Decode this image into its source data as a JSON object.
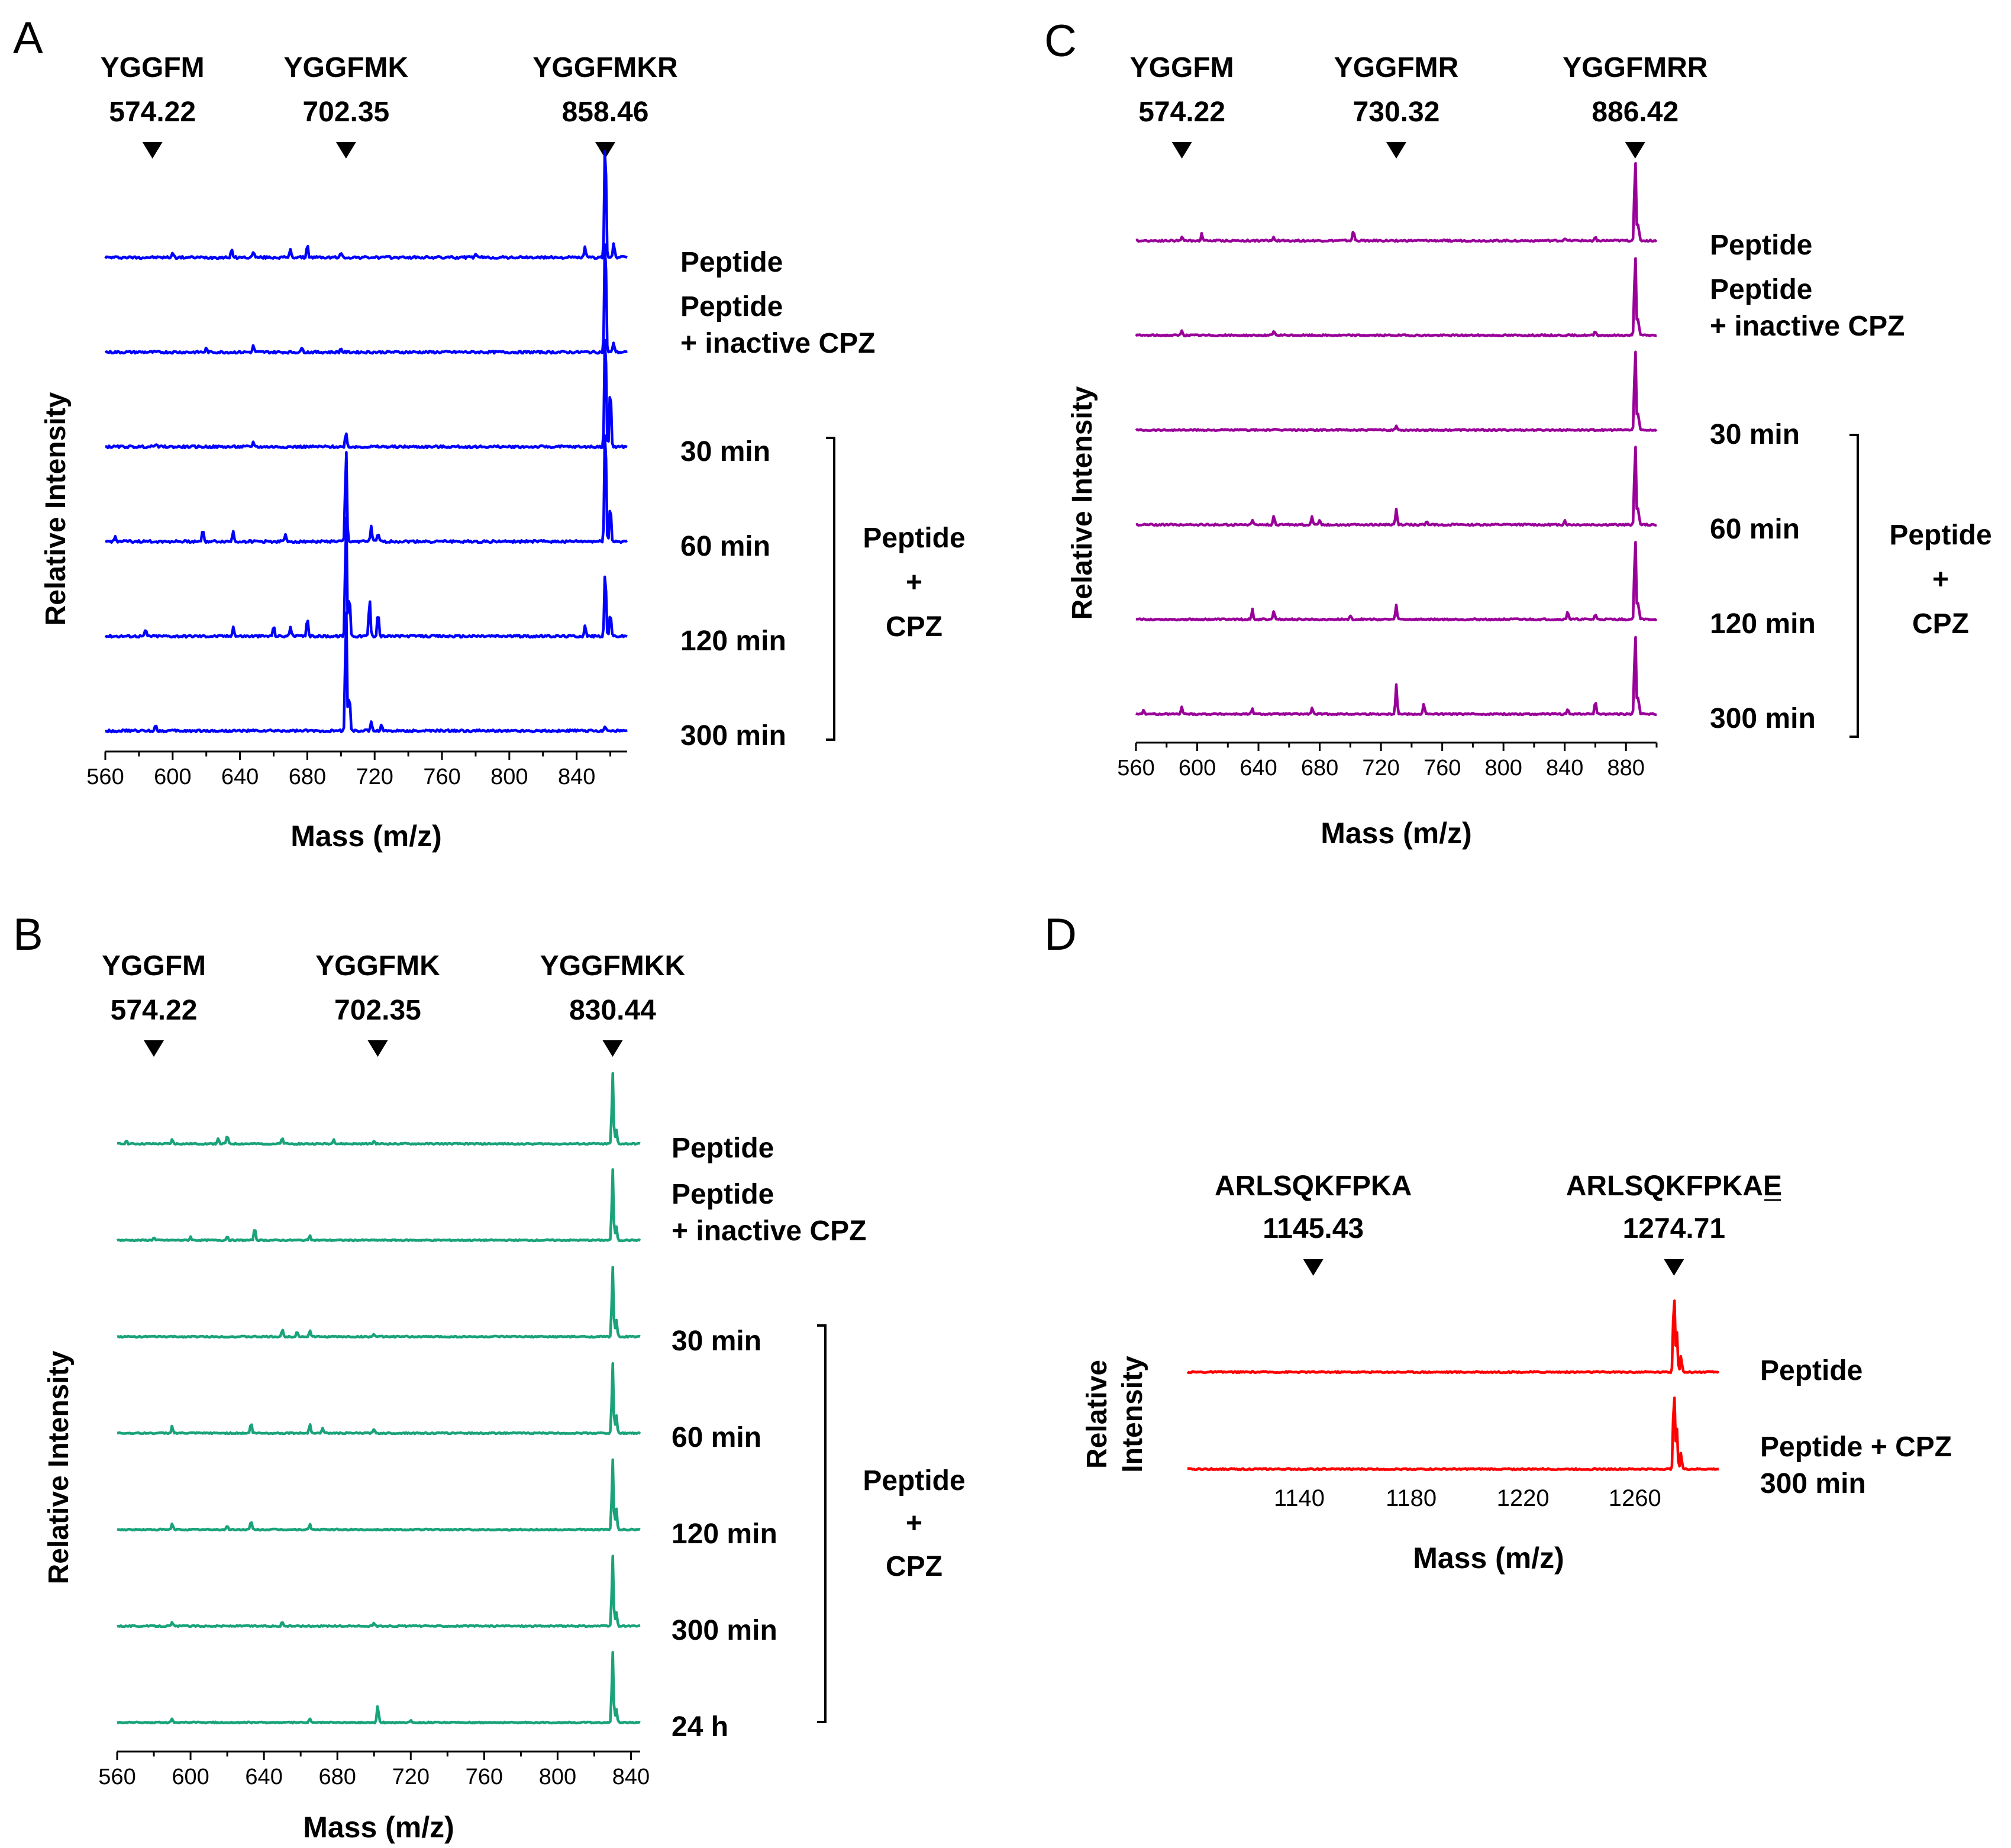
{
  "chart_data": [
    {
      "panel": "A",
      "type": "line",
      "color": "#0000ff",
      "xlabel": "Mass (m/z)",
      "ylabel": "Relative Intensity",
      "xlim": [
        560,
        870
      ],
      "xticks": [
        560,
        600,
        640,
        680,
        720,
        760,
        800,
        840
      ],
      "markers": [
        {
          "name": "YGGFM",
          "mass": "574.22",
          "x": 588
        },
        {
          "name": "YGGFMK",
          "mass": "702.35",
          "x": 703
        },
        {
          "name": "YGGFMKR",
          "mass": "858.46",
          "x": 857
        }
      ],
      "series": [
        {
          "name": "Peptide",
          "label_lines": [
            "Peptide"
          ],
          "peaks": [
            [
              857,
              1.0
            ],
            [
              862,
              0.12
            ],
            [
              845,
              0.08
            ],
            [
              680,
              0.1
            ],
            [
              670,
              0.07
            ],
            [
              635,
              0.06
            ],
            [
              648,
              0.05
            ],
            [
              700,
              0.04
            ],
            [
              780,
              0.03
            ],
            [
              600,
              0.04
            ]
          ]
        },
        {
          "name": "Peptide + inactive CPZ",
          "label_lines": [
            "Peptide",
            "+ inactive CPZ"
          ],
          "peaks": [
            [
              857,
              1.0
            ],
            [
              862,
              0.08
            ],
            [
              648,
              0.05
            ],
            [
              677,
              0.04
            ],
            [
              620,
              0.03
            ],
            [
              700,
              0.03
            ]
          ]
        },
        {
          "name": "30 min",
          "label_lines": [
            "30 min"
          ],
          "peaks": [
            [
              857,
              1.0
            ],
            [
              860,
              0.5
            ],
            [
              703,
              0.12
            ],
            [
              648,
              0.04
            ],
            [
              590,
              0.03
            ]
          ]
        },
        {
          "name": "60 min",
          "label_lines": [
            "60 min"
          ],
          "peaks": [
            [
              857,
              1.0
            ],
            [
              860,
              0.3
            ],
            [
              703,
              0.75
            ],
            [
              718,
              0.12
            ],
            [
              722,
              0.06
            ],
            [
              618,
              0.1
            ],
            [
              636,
              0.08
            ],
            [
              667,
              0.05
            ],
            [
              566,
              0.04
            ]
          ]
        },
        {
          "name": "120 min",
          "label_lines": [
            "120 min"
          ],
          "peaks": [
            [
              703,
              1.0
            ],
            [
              705,
              0.35
            ],
            [
              717,
              0.3
            ],
            [
              722,
              0.2
            ],
            [
              857,
              0.55
            ],
            [
              860,
              0.2
            ],
            [
              680,
              0.15
            ],
            [
              670,
              0.08
            ],
            [
              660,
              0.08
            ],
            [
              636,
              0.08
            ],
            [
              845,
              0.08
            ],
            [
              584,
              0.05
            ]
          ]
        },
        {
          "name": "300 min",
          "label_lines": [
            "300 min"
          ],
          "peaks": [
            [
              703,
              1.0
            ],
            [
              705,
              0.3
            ],
            [
              718,
              0.08
            ],
            [
              724,
              0.05
            ],
            [
              590,
              0.05
            ],
            [
              857,
              0.04
            ]
          ]
        }
      ],
      "bracket_label": [
        "Peptide",
        "+",
        "CPZ"
      ]
    },
    {
      "panel": "B",
      "type": "line",
      "color": "#1aa37a",
      "xlabel": "Mass (m/z)",
      "ylabel": "Relative Intensity",
      "xlim": [
        560,
        845
      ],
      "xticks": [
        560,
        600,
        640,
        680,
        720,
        760,
        800,
        840
      ],
      "markers": [
        {
          "name": "YGGFM",
          "mass": "574.22",
          "x": 580
        },
        {
          "name": "YGGFMK",
          "mass": "702.35",
          "x": 702
        },
        {
          "name": "YGGFMKK",
          "mass": "830.44",
          "x": 830
        }
      ],
      "series": [
        {
          "name": "Peptide",
          "label_lines": [
            "Peptide"
          ],
          "peaks": [
            [
              830,
              1.0
            ],
            [
              832,
              0.2
            ],
            [
              620,
              0.12
            ],
            [
              615,
              0.08
            ],
            [
              650,
              0.08
            ],
            [
              678,
              0.07
            ],
            [
              590,
              0.06
            ],
            [
              565,
              0.05
            ],
            [
              700,
              0.04
            ]
          ]
        },
        {
          "name": "Peptide + inactive CPZ",
          "label_lines": [
            "Peptide",
            "+ inactive CPZ"
          ],
          "peaks": [
            [
              830,
              1.0
            ],
            [
              832,
              0.2
            ],
            [
              635,
              0.18
            ],
            [
              665,
              0.08
            ],
            [
              620,
              0.06
            ],
            [
              600,
              0.05
            ],
            [
              580,
              0.04
            ]
          ]
        },
        {
          "name": "30 min",
          "label_lines": [
            "30 min"
          ],
          "peaks": [
            [
              830,
              1.0
            ],
            [
              832,
              0.25
            ],
            [
              650,
              0.1
            ],
            [
              658,
              0.08
            ],
            [
              665,
              0.09
            ],
            [
              700,
              0.04
            ]
          ]
        },
        {
          "name": "60 min",
          "label_lines": [
            "60 min"
          ],
          "peaks": [
            [
              830,
              1.0
            ],
            [
              832,
              0.25
            ],
            [
              590,
              0.1
            ],
            [
              633,
              0.15
            ],
            [
              665,
              0.14
            ],
            [
              672,
              0.08
            ],
            [
              700,
              0.05
            ]
          ]
        },
        {
          "name": "120 min",
          "label_lines": [
            "120 min"
          ],
          "peaks": [
            [
              830,
              1.0
            ],
            [
              832,
              0.3
            ],
            [
              590,
              0.08
            ],
            [
              633,
              0.12
            ],
            [
              665,
              0.08
            ],
            [
              620,
              0.05
            ]
          ]
        },
        {
          "name": "300 min",
          "label_lines": [
            "300 min"
          ],
          "peaks": [
            [
              830,
              1.0
            ],
            [
              832,
              0.2
            ],
            [
              590,
              0.05
            ],
            [
              650,
              0.06
            ],
            [
              700,
              0.04
            ]
          ]
        },
        {
          "name": "24 h",
          "label_lines": [
            "24 h"
          ],
          "peaks": [
            [
              830,
              1.0
            ],
            [
              832,
              0.2
            ],
            [
              702,
              0.25
            ],
            [
              590,
              0.05
            ],
            [
              665,
              0.05
            ],
            [
              720,
              0.04
            ]
          ]
        }
      ],
      "bracket_label": [
        "Peptide",
        "+",
        "CPZ"
      ]
    },
    {
      "panel": "C",
      "type": "line",
      "color": "#990099",
      "xlabel": "Mass (m/z)",
      "ylabel": "Relative Intensity",
      "xlim": [
        560,
        900
      ],
      "xticks": [
        560,
        600,
        640,
        680,
        720,
        760,
        800,
        840,
        880
      ],
      "markers": [
        {
          "name": "YGGFM",
          "mass": "574.22",
          "x": 590
        },
        {
          "name": "YGGFMR",
          "mass": "730.32",
          "x": 730
        },
        {
          "name": "YGGFMRR",
          "mass": "886.42",
          "x": 886
        }
      ],
      "series": [
        {
          "name": "Peptide",
          "label_lines": [
            "Peptide"
          ],
          "peaks": [
            [
              886,
              1.0
            ],
            [
              888,
              0.2
            ],
            [
              702,
              0.12
            ],
            [
              603,
              0.08
            ],
            [
              590,
              0.05
            ],
            [
              650,
              0.04
            ],
            [
              840,
              0.03
            ],
            [
              860,
              0.04
            ]
          ]
        },
        {
          "name": "Peptide + inactive CPZ",
          "label_lines": [
            "Peptide",
            "+ inactive CPZ"
          ],
          "peaks": [
            [
              886,
              1.0
            ],
            [
              888,
              0.2
            ],
            [
              590,
              0.06
            ],
            [
              650,
              0.05
            ],
            [
              860,
              0.05
            ]
          ]
        },
        {
          "name": "30 min",
          "label_lines": [
            "30 min"
          ],
          "peaks": [
            [
              886,
              1.0
            ],
            [
              888,
              0.2
            ],
            [
              730,
              0.05
            ]
          ]
        },
        {
          "name": "60 min",
          "label_lines": [
            "60 min"
          ],
          "peaks": [
            [
              886,
              1.0
            ],
            [
              888,
              0.2
            ],
            [
              730,
              0.18
            ],
            [
              650,
              0.1
            ],
            [
              675,
              0.1
            ],
            [
              680,
              0.06
            ],
            [
              636,
              0.05
            ],
            [
              750,
              0.04
            ],
            [
              840,
              0.05
            ]
          ]
        },
        {
          "name": "120 min",
          "label_lines": [
            "120 min"
          ],
          "peaks": [
            [
              886,
              1.0
            ],
            [
              888,
              0.2
            ],
            [
              730,
              0.16
            ],
            [
              636,
              0.12
            ],
            [
              650,
              0.1
            ],
            [
              842,
              0.1
            ],
            [
              860,
              0.06
            ],
            [
              700,
              0.05
            ]
          ]
        },
        {
          "name": "300 min",
          "label_lines": [
            "300 min"
          ],
          "peaks": [
            [
              886,
              1.0
            ],
            [
              888,
              0.2
            ],
            [
              730,
              0.35
            ],
            [
              748,
              0.12
            ],
            [
              860,
              0.15
            ],
            [
              590,
              0.08
            ],
            [
              636,
              0.06
            ],
            [
              675,
              0.07
            ],
            [
              842,
              0.06
            ],
            [
              565,
              0.05
            ]
          ]
        }
      ],
      "bracket_label": [
        "Peptide",
        "+",
        "CPZ"
      ]
    },
    {
      "panel": "D",
      "type": "line",
      "color": "#ff0000",
      "xlabel": "Mass (m/z)",
      "ylabel_lines": [
        "Relative",
        "Intensity"
      ],
      "xlim": [
        1100,
        1290
      ],
      "xticks": [
        1140,
        1180,
        1220,
        1260
      ],
      "markers": [
        {
          "name": "ARLSQKFPKA",
          "mass": "1145.43",
          "x": 1145
        },
        {
          "name": "ARLSQKFPKAE",
          "mass": "1274.71",
          "x": 1274
        }
      ],
      "series": [
        {
          "name": "Peptide",
          "label_lines": [
            "Peptide"
          ],
          "peaks": [
            [
              1274,
              1.0
            ],
            [
              1275,
              0.5
            ],
            [
              1276.5,
              0.2
            ]
          ]
        },
        {
          "name": "Peptide + CPZ 300 min",
          "label_lines": [
            "Peptide + CPZ",
            "300 min"
          ],
          "peaks": [
            [
              1274,
              1.0
            ],
            [
              1275,
              0.5
            ],
            [
              1276.5,
              0.2
            ]
          ]
        }
      ]
    }
  ]
}
